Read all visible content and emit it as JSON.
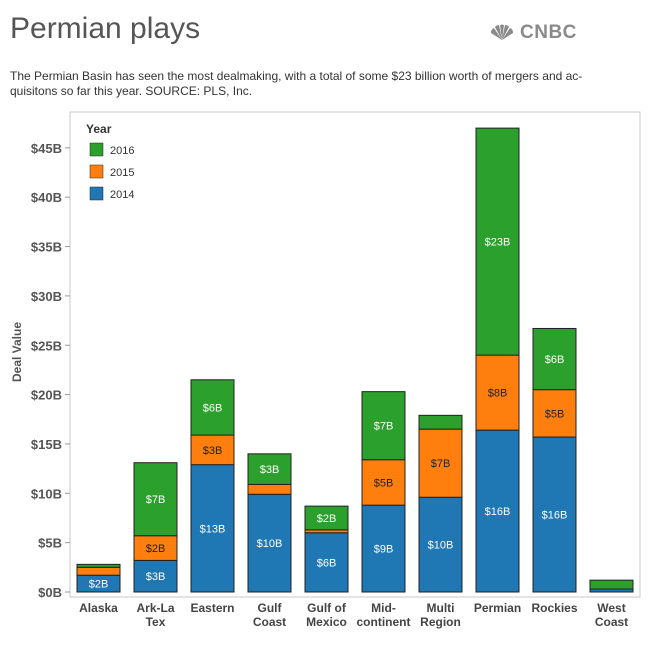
{
  "header": {
    "title": "Permian plays",
    "logo_text": "CNBC",
    "subtitle_line1": "The Permian Basin has seen the most dealmaking, with a total of some $23 billion worth of mergers and ac-",
    "subtitle_line2": "quisitons so far this year.  SOURCE: PLS, Inc."
  },
  "colors": {
    "s2016": "#2ca02c",
    "s2015": "#ff7f0e",
    "s2014": "#1f77b4",
    "axis_text": "#555555",
    "logo": "#8a8a8a"
  },
  "chart_data": {
    "type": "bar",
    "stacked": true,
    "title": "",
    "xlabel": "",
    "ylabel": "Deal Value",
    "ylim": [
      0,
      48
    ],
    "yticks": [
      0,
      5,
      10,
      15,
      20,
      25,
      30,
      35,
      40,
      45
    ],
    "ytick_labels": [
      "$0B",
      "$5B",
      "$10B",
      "$15B",
      "$20B",
      "$25B",
      "$30B",
      "$35B",
      "$40B",
      "$45B"
    ],
    "categories": [
      [
        "Alaska"
      ],
      [
        "Ark-La",
        "Tex"
      ],
      [
        "Eastern"
      ],
      [
        "Gulf",
        "Coast"
      ],
      [
        "Gulf of",
        "Mexico"
      ],
      [
        "Mid-",
        "continent"
      ],
      [
        "Multi",
        "Region"
      ],
      [
        "Permian"
      ],
      [
        "Rockies"
      ],
      [
        "West",
        "Coast"
      ]
    ],
    "legend": {
      "title": "Year",
      "position": "top-left",
      "entries": [
        "2016",
        "2015",
        "2014"
      ]
    },
    "series": [
      {
        "name": "2014",
        "color": "#1f77b4",
        "values": [
          1.7,
          3.2,
          12.9,
          9.9,
          6.0,
          8.8,
          9.6,
          16.4,
          15.7,
          0.3
        ],
        "labels": [
          "$2B",
          "$3B",
          "$13B",
          "$10B",
          "$6B",
          "$9B",
          "$10B",
          "$16B",
          "$16B",
          ""
        ]
      },
      {
        "name": "2015",
        "color": "#ff7f0e",
        "values": [
          0.8,
          2.5,
          3.0,
          1.0,
          0.3,
          4.6,
          6.9,
          7.6,
          4.8,
          0.0
        ],
        "labels": [
          "",
          "$2B",
          "$3B",
          "",
          "",
          "$5B",
          "$7B",
          "$8B",
          "$5B",
          ""
        ]
      },
      {
        "name": "2016",
        "color": "#2ca02c",
        "values": [
          0.3,
          7.4,
          5.6,
          3.1,
          2.4,
          6.9,
          1.4,
          23.0,
          6.2,
          0.9
        ],
        "labels": [
          "",
          "$7B",
          "$6B",
          "$3B",
          "$2B",
          "$7B",
          "",
          "$23B",
          "$6B",
          ""
        ]
      }
    ]
  }
}
